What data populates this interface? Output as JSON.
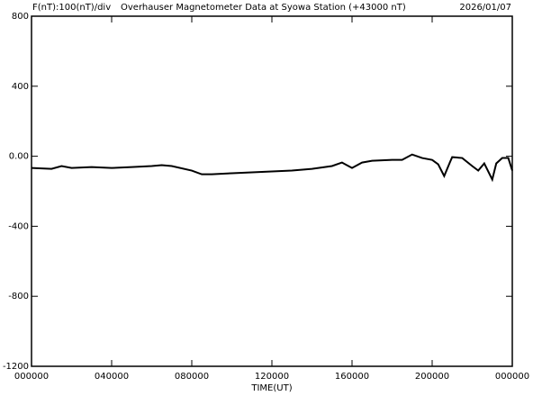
{
  "chart_data": {
    "type": "line",
    "title": "Overhauser Magnetometer Data at Syowa Station (+43000 nT)",
    "subtitle": "F(nT):100(nT)/div",
    "date": "2026/01/07",
    "x_label": "TIME(UT)",
    "xlim": [
      0,
      24
    ],
    "xticks": [
      {
        "value": 0,
        "label": "000000"
      },
      {
        "value": 4,
        "label": "040000"
      },
      {
        "value": 8,
        "label": "080000"
      },
      {
        "value": 12,
        "label": "120000"
      },
      {
        "value": 16,
        "label": "160000"
      },
      {
        "value": 20,
        "label": "200000"
      },
      {
        "value": 24,
        "label": "000000"
      }
    ],
    "ylim": [
      -1200,
      800
    ],
    "yticks": [
      -1200,
      -800,
      -400,
      {
        "value": 0,
        "label": "0.00"
      },
      400,
      800
    ],
    "x": [
      0,
      1,
      1.5,
      2,
      3,
      4,
      5,
      6,
      6.5,
      7,
      8,
      8.5,
      9,
      10,
      11,
      12,
      13,
      14,
      15,
      15.5,
      16,
      16.5,
      17,
      18,
      18.5,
      19,
      19.5,
      20,
      20.3,
      20.6,
      20.9,
      21,
      21.5,
      22,
      22.3,
      22.6,
      23,
      23.2,
      23.5,
      23.8,
      24
    ],
    "series": [
      {
        "color": "#000000",
        "values": [
          -67,
          -72,
          -56,
          -67,
          -62,
          -67,
          -62,
          -56,
          -51,
          -56,
          -82,
          -103,
          -103,
          -97,
          -92,
          -87,
          -82,
          -72,
          -56,
          -36,
          -67,
          -36,
          -26,
          -21,
          -21,
          10,
          -10,
          -21,
          -46,
          -113,
          -31,
          -5,
          -10,
          -56,
          -82,
          -41,
          -133,
          -41,
          -10,
          -10,
          -82
        ]
      }
    ]
  }
}
